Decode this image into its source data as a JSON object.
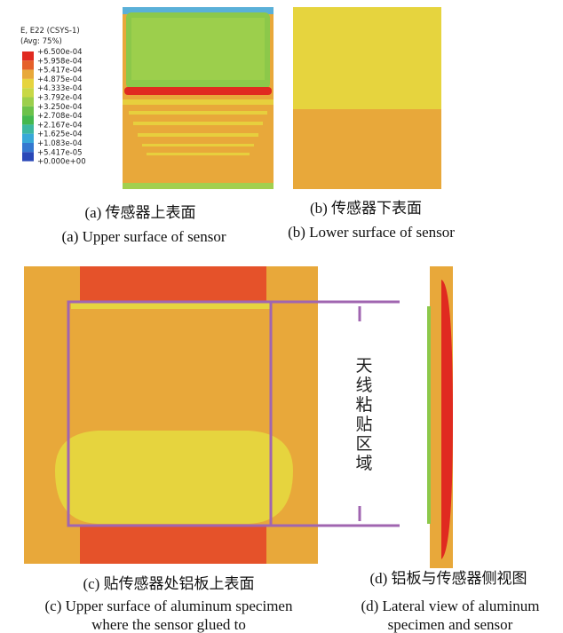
{
  "legend": {
    "title": "E, E22 (CSYS-1)",
    "subtitle": "(Avg: 75%)",
    "labels": [
      "+6.500e-04",
      "+5.958e-04",
      "+5.417e-04",
      "+4.875e-04",
      "+4.333e-04",
      "+3.792e-04",
      "+3.250e-04",
      "+2.708e-04",
      "+2.167e-04",
      "+1.625e-04",
      "+1.083e-04",
      "+5.417e-05",
      "+0.000e+00"
    ]
  },
  "panels": [
    {
      "caption_cn": "(a) 传感器上表面",
      "caption_en": [
        "(a) Upper surface of sensor"
      ]
    },
    {
      "caption_cn": "(b) 传感器下表面",
      "caption_en": [
        "(b) Lower surface of sensor"
      ]
    },
    {
      "caption_cn": "(c) 贴传感器处铝板上表面",
      "caption_en": [
        "(c) Upper surface of aluminum specimen",
        "where the sensor glued to"
      ]
    },
    {
      "caption_cn": "(d) 铝板与传感器侧视图",
      "caption_en": [
        "(d) Lateral view of aluminum",
        "specimen and sensor"
      ]
    }
  ],
  "annotation": [
    "天",
    "线",
    "粘",
    "贴",
    "区",
    "域"
  ]
}
